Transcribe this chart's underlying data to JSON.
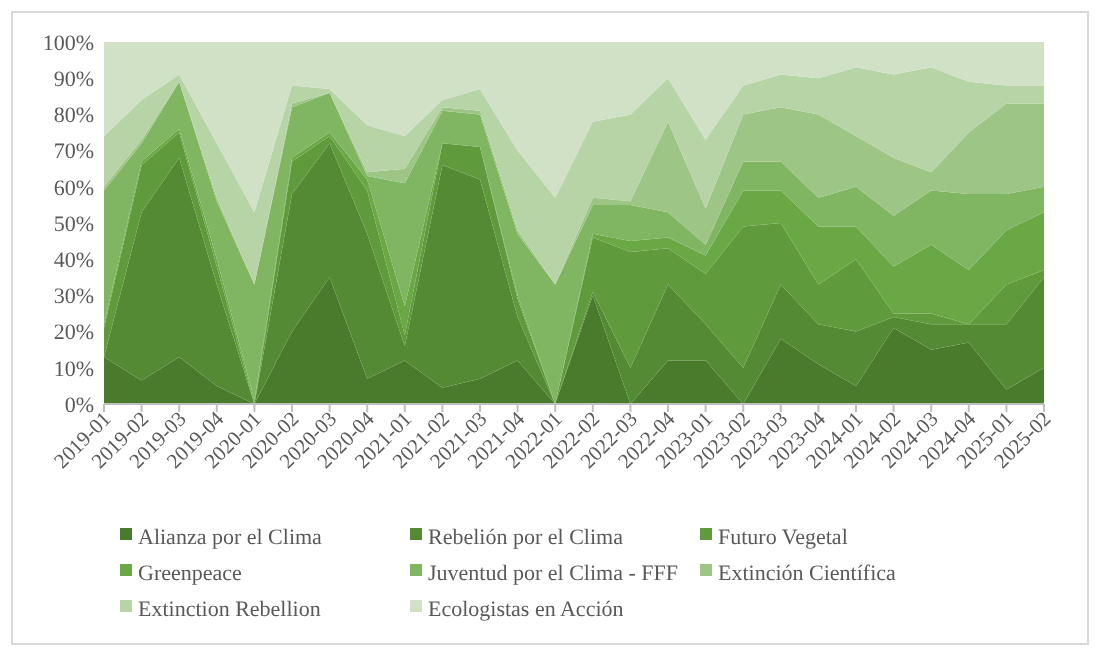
{
  "chart_data": {
    "type": "area",
    "stacked": true,
    "legend": "bottom",
    "ylim": [
      0,
      100
    ],
    "yticks": [
      {
        "value": 0,
        "label": "0%"
      },
      {
        "value": 10,
        "label": "10%"
      },
      {
        "value": 20,
        "label": "20%"
      },
      {
        "value": 30,
        "label": "30%"
      },
      {
        "value": 40,
        "label": "40%"
      },
      {
        "value": 50,
        "label": "50%"
      },
      {
        "value": 60,
        "label": "60%"
      },
      {
        "value": 70,
        "label": "70%"
      },
      {
        "value": 80,
        "label": "80%"
      },
      {
        "value": 90,
        "label": "90%"
      },
      {
        "value": 100,
        "label": "100%"
      }
    ],
    "categories": [
      "2019-01",
      "2019-02",
      "2019-03",
      "2019-04",
      "2020-01",
      "2020-02",
      "2020-03",
      "2020-04",
      "2021-01",
      "2021-02",
      "2021-03",
      "2021-04",
      "2022-01",
      "2022-02",
      "2022-03",
      "2022-04",
      "2023-01",
      "2023-02",
      "2023-03",
      "2023-04",
      "2024-01",
      "2024-02",
      "2024-03",
      "2024-04",
      "2025-01",
      "2025-02"
    ],
    "series": [
      {
        "name": "Alianza por el Clima",
        "color": "#4a7a2c",
        "values": [
          13,
          6.5,
          13,
          5,
          0,
          20,
          35,
          7,
          12,
          4.5,
          7,
          12,
          0,
          30,
          0,
          12,
          12,
          0,
          18,
          11,
          5,
          21,
          15,
          17,
          4,
          10
        ]
      },
      {
        "name": "Rebelión por el Clima",
        "color": "#558a34",
        "values": [
          0,
          46.5,
          55,
          28,
          0,
          38,
          37,
          40,
          4,
          61.5,
          55,
          12,
          0,
          1,
          10,
          21,
          10,
          10,
          15,
          11,
          15,
          3,
          7,
          5,
          18,
          25
        ]
      },
      {
        "name": "Futuro Vegetal",
        "color": "#5f9a3c",
        "values": [
          8,
          13,
          7,
          5,
          0,
          9,
          2,
          12,
          3,
          6,
          9,
          5,
          0,
          15,
          32,
          10,
          14,
          39,
          17,
          11,
          20,
          1,
          3,
          0,
          11,
          2
        ]
      },
      {
        "name": "Greenpeace",
        "color": "#6aa846",
        "values": [
          1,
          1,
          1,
          2,
          1,
          1,
          1,
          3,
          8,
          0,
          0,
          1,
          0,
          1,
          3,
          3,
          5,
          10,
          9,
          16,
          9,
          13,
          19,
          15,
          15,
          16
        ]
      },
      {
        "name": "Juventud por el Clima - FFF",
        "color": "#80b662",
        "values": [
          37,
          5,
          13,
          16,
          32,
          14,
          11,
          1,
          34,
          9,
          9,
          17,
          33,
          8,
          10,
          7,
          3,
          8,
          8,
          8,
          11,
          14,
          15,
          21,
          10,
          7
        ]
      },
      {
        "name": "Extinción Científica",
        "color": "#9dc585",
        "values": [
          1,
          1,
          0,
          1,
          0,
          1,
          0,
          1,
          4,
          1,
          1,
          1,
          0,
          2,
          1,
          25,
          10,
          13,
          15,
          23,
          14,
          16,
          5,
          17,
          25,
          23
        ]
      },
      {
        "name": "Extinction Rebellion",
        "color": "#b7d4a6",
        "values": [
          14,
          11,
          2,
          15,
          20,
          5,
          1,
          13,
          9,
          2,
          6,
          22,
          24,
          21,
          24,
          12,
          19,
          8,
          9,
          10,
          19,
          23,
          29,
          14,
          5,
          5
        ]
      },
      {
        "name": "Ecologistas en Acción",
        "color": "#d0e1c6",
        "values": [
          26,
          16,
          9,
          28,
          47,
          12,
          13,
          23,
          26,
          16,
          13,
          30,
          43,
          22,
          20,
          10,
          27,
          12,
          9,
          10,
          7,
          9,
          7,
          11,
          12,
          12
        ]
      }
    ]
  }
}
